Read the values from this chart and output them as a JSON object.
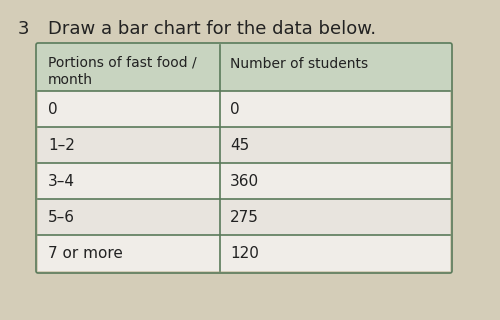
{
  "question_num": "3",
  "question_text": "Draw a bar chart for the data below.",
  "col1_header": "Portions of fast food /\nmonth",
  "col2_header": "Number of students",
  "rows": [
    [
      "0",
      "0"
    ],
    [
      "1–2",
      "45"
    ],
    [
      "3–4",
      "360"
    ],
    [
      "5–6",
      "275"
    ],
    [
      "7 or more",
      "120"
    ]
  ],
  "fig_bg": "#b8b090",
  "page_bg": "#d4cdb8",
  "table_border_color": "#5a7a5a",
  "header_bg": "#c8d4c0",
  "cell_bg": "#f0ede8",
  "cell_bg_alt": "#e8e4de",
  "text_color": "#222222",
  "title_fontsize": 13,
  "header_fontsize": 10,
  "cell_fontsize": 11
}
